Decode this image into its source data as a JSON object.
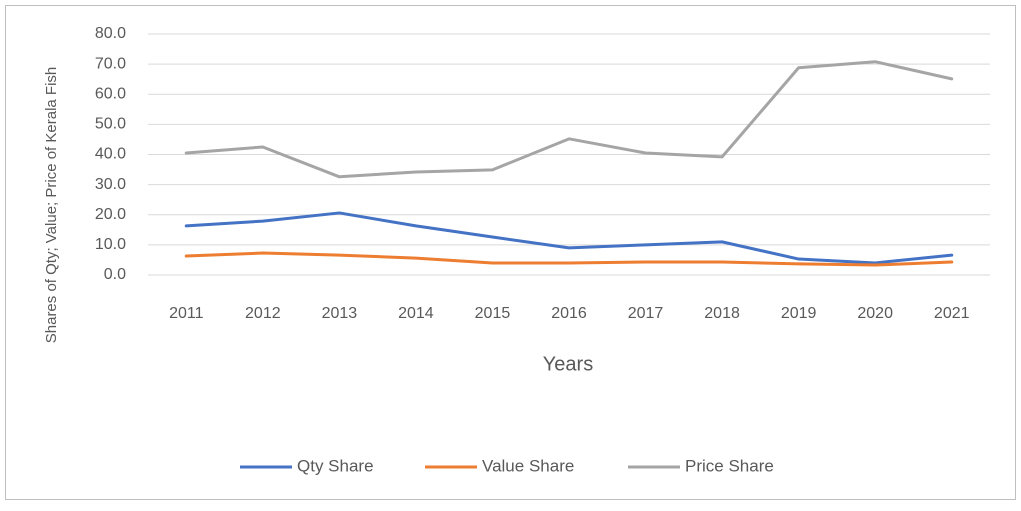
{
  "chart_data": {
    "type": "line",
    "y_label": "Shares of Qty; Value; Price of Kerala Fish",
    "x_label": "Years",
    "categories": [
      "2011",
      "2012",
      "2013",
      "2014",
      "2015",
      "2016",
      "2017",
      "2018",
      "2019",
      "2020",
      "2021"
    ],
    "series": [
      {
        "name": "Qty Share",
        "color": "#4472c4",
        "values": [
          16.3,
          17.9,
          20.6,
          16.3,
          12.6,
          9.0,
          10.0,
          11.0,
          5.3,
          4.0,
          6.6
        ]
      },
      {
        "name": "Value Share",
        "color": "#ed7d31",
        "values": [
          6.3,
          7.3,
          6.6,
          5.6,
          4.0,
          4.0,
          4.3,
          4.3,
          3.7,
          3.3,
          4.3
        ]
      },
      {
        "name": "Price Share",
        "color": "#a5a5a5",
        "values": [
          40.5,
          42.5,
          32.6,
          34.2,
          34.9,
          45.2,
          40.5,
          39.2,
          68.8,
          70.8,
          65.1
        ]
      }
    ],
    "ylim": [
      0,
      80
    ],
    "yticks": [
      {
        "value": 0,
        "label": "0.0"
      },
      {
        "value": 10,
        "label": "10.0"
      },
      {
        "value": 20,
        "label": "20.0"
      },
      {
        "value": 30,
        "label": "30.0"
      },
      {
        "value": 40,
        "label": "40.0"
      },
      {
        "value": 50,
        "label": "50.0"
      },
      {
        "value": 60,
        "label": "60.0"
      },
      {
        "value": 70,
        "label": "70.0"
      },
      {
        "value": 80,
        "label": "80.0"
      }
    ],
    "grid": true,
    "legend": "bottom"
  }
}
